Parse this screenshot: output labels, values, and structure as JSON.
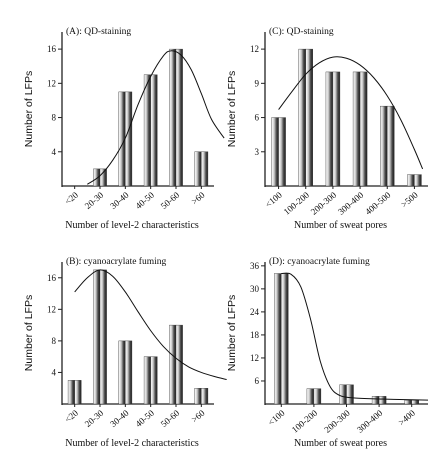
{
  "chart_data": [
    {
      "type": "bar",
      "title": "(A): QD-staining",
      "xlabel": "Number of level-2 characteristics",
      "ylabel": "Number of LFPs",
      "categories": [
        "<20",
        "20-30",
        "30-40",
        "40-50",
        "50-60",
        ">60"
      ],
      "series": [
        {
          "values": [
            0,
            2,
            11,
            13,
            16,
            4
          ]
        },
        {
          "values": [
            0,
            2,
            11,
            13,
            16,
            4
          ]
        }
      ],
      "yticks": [
        4,
        8,
        12,
        16
      ],
      "ylim": [
        0,
        18
      ],
      "fit_curve": [
        [
          0.5,
          0.2
        ],
        [
          1,
          1.2
        ],
        [
          1.5,
          3
        ],
        [
          2,
          5.6
        ],
        [
          2.5,
          9.5
        ],
        [
          3,
          12.8
        ],
        [
          3.5,
          15.2
        ],
        [
          3.8,
          15.8
        ],
        [
          4.2,
          15.3
        ],
        [
          4.6,
          13.6
        ],
        [
          5,
          10.8
        ],
        [
          5.4,
          7.8
        ],
        [
          5.9,
          5.6
        ]
      ],
      "grid": false
    },
    {
      "type": "bar",
      "title": "(C): QD-staining",
      "xlabel": "Number of sweat pores",
      "ylabel": "Number of LFPs",
      "categories": [
        "<100",
        "100-200",
        "200-300",
        "300-400",
        "400-500",
        ">500"
      ],
      "series": [
        {
          "values": [
            6,
            12,
            10,
            10,
            7,
            1
          ]
        },
        {
          "values": [
            6,
            12,
            10,
            10,
            7,
            1
          ]
        }
      ],
      "yticks": [
        3,
        6,
        9,
        12
      ],
      "ylim": [
        0,
        13.5
      ],
      "fit_curve": [
        [
          0,
          6.7
        ],
        [
          0.5,
          8.3
        ],
        [
          1,
          9.8
        ],
        [
          1.5,
          10.8
        ],
        [
          2,
          11.3
        ],
        [
          2.5,
          11.2
        ],
        [
          3,
          10.6
        ],
        [
          3.5,
          9.5
        ],
        [
          4,
          7.9
        ],
        [
          4.5,
          5.8
        ],
        [
          5,
          3.2
        ],
        [
          5.3,
          1.5
        ]
      ],
      "grid": false
    },
    {
      "type": "bar",
      "title": "(B): cyanoacrylate fuming",
      "xlabel": "Number of level-2 characteristics",
      "ylabel": "Number of LFPs",
      "categories": [
        "<20",
        "20-30",
        "30-40",
        "40-50",
        "50-60",
        ">60"
      ],
      "series": [
        {
          "values": [
            3,
            17,
            8,
            6,
            10,
            2
          ]
        },
        {
          "values": [
            3,
            17,
            8,
            6,
            10,
            2
          ]
        }
      ],
      "yticks": [
        4,
        8,
        12,
        16
      ],
      "ylim": [
        0,
        18
      ],
      "fit_curve": [
        [
          0,
          14.2
        ],
        [
          0.5,
          16
        ],
        [
          1,
          17
        ],
        [
          1.5,
          16.2
        ],
        [
          2,
          14.2
        ],
        [
          2.5,
          11.7
        ],
        [
          3,
          9.3
        ],
        [
          3.5,
          7.3
        ],
        [
          4,
          5.8
        ],
        [
          4.5,
          4.7
        ],
        [
          5,
          4
        ],
        [
          5.5,
          3.5
        ],
        [
          6,
          3.1
        ]
      ],
      "grid": false
    },
    {
      "type": "bar",
      "title": "(D): cyanoacrylate fuming",
      "xlabel": "Number of sweat pores",
      "ylabel": "Number of LFPs",
      "categories": [
        "<100",
        "100-200",
        "200-300",
        "300-400",
        ">400"
      ],
      "series": [
        {
          "values": [
            34,
            4,
            5,
            2,
            1
          ]
        },
        {
          "values": [
            34,
            4,
            5,
            2,
            1
          ]
        }
      ],
      "yticks": [
        6,
        12,
        18,
        24,
        30,
        36
      ],
      "ylim": [
        0,
        37
      ],
      "fit_curve": [
        [
          0,
          34
        ],
        [
          0.3,
          33.8
        ],
        [
          0.6,
          30.5
        ],
        [
          0.9,
          22
        ],
        [
          1.2,
          11
        ],
        [
          1.5,
          4.5
        ],
        [
          1.8,
          2.2
        ],
        [
          2.2,
          1.6
        ],
        [
          3,
          1.3
        ],
        [
          4,
          1.1
        ],
        [
          4.5,
          1
        ]
      ],
      "grid": false
    }
  ]
}
